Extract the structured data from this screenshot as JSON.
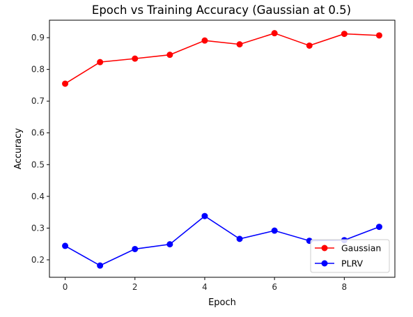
{
  "chart_data": {
    "type": "line",
    "title": "Epoch vs Training Accuracy (Gaussian at 0.5)",
    "xlabel": "Epoch",
    "ylabel": "Accuracy",
    "x": [
      0,
      1,
      2,
      3,
      4,
      5,
      6,
      7,
      8,
      9
    ],
    "xlim": [
      -0.45,
      9.45
    ],
    "ylim": [
      0.145,
      0.955
    ],
    "xticks": [
      0,
      2,
      4,
      6,
      8
    ],
    "yticks": [
      0.2,
      0.3,
      0.4,
      0.5,
      0.6,
      0.7,
      0.8,
      0.9
    ],
    "grid": false,
    "legend_position": "lower-right",
    "series": [
      {
        "name": "Gaussian",
        "color": "#ff0000",
        "marker": "circle",
        "values": [
          0.755,
          0.823,
          0.834,
          0.846,
          0.891,
          0.879,
          0.914,
          0.875,
          0.912,
          0.907
        ]
      },
      {
        "name": "PLRV",
        "color": "#0000ff",
        "marker": "circle",
        "values": [
          0.244,
          0.182,
          0.234,
          0.249,
          0.338,
          0.266,
          0.292,
          0.26,
          0.262,
          0.304
        ]
      }
    ]
  }
}
